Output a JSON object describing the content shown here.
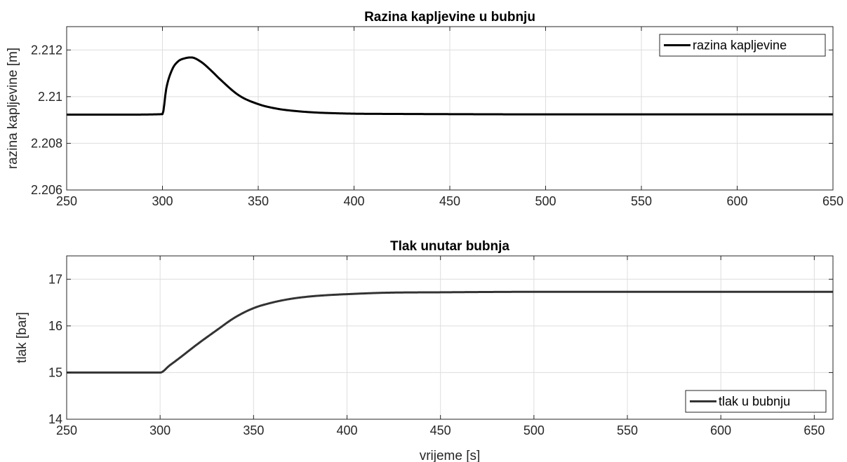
{
  "chart_data": [
    {
      "type": "line",
      "title": "Razina kapljevine u bubnju",
      "xlabel": "",
      "ylabel": "razina kapljevine [m]",
      "xlim": [
        250,
        650
      ],
      "ylim": [
        2.206,
        2.213
      ],
      "xticks": [
        250,
        300,
        350,
        400,
        450,
        500,
        550,
        600,
        650
      ],
      "yticks": [
        2.206,
        2.208,
        2.21,
        2.212
      ],
      "ytick_labels": [
        "2.206",
        "2.208",
        "2.21",
        "2.212"
      ],
      "grid": true,
      "legend_position": "top-right",
      "series": [
        {
          "name": "razina kapljevine",
          "color": "#000000",
          "x": [
            250,
            280,
            300,
            302,
            305,
            308,
            312,
            315,
            320,
            325,
            330,
            340,
            350,
            360,
            370,
            380,
            390,
            400,
            420,
            450,
            500,
            550,
            600,
            650
          ],
          "y": [
            2.20923,
            2.20923,
            2.20925,
            2.21035,
            2.21115,
            2.2115,
            2.21165,
            2.21168,
            2.2115,
            2.21115,
            2.21075,
            2.21005,
            2.20968,
            2.20948,
            2.20938,
            2.20932,
            2.20929,
            2.20927,
            2.20926,
            2.20925,
            2.20924,
            2.20924,
            2.20924,
            2.20924
          ]
        }
      ]
    },
    {
      "type": "line",
      "title": "Tlak unutar bubnja",
      "xlabel": "vrijeme [s]",
      "ylabel": "tlak [bar]",
      "xlim": [
        250,
        660
      ],
      "ylim": [
        14,
        17.5
      ],
      "xticks": [
        250,
        300,
        350,
        400,
        450,
        500,
        550,
        600,
        650
      ],
      "yticks": [
        14,
        15,
        16,
        17
      ],
      "ytick_labels": [
        "14",
        "15",
        "16",
        "17"
      ],
      "grid": true,
      "legend_position": "bottom-right",
      "series": [
        {
          "name": "tlak u bubnju",
          "color": "#333333",
          "x": [
            250,
            300,
            305,
            310,
            320,
            330,
            340,
            350,
            360,
            370,
            380,
            390,
            400,
            420,
            450,
            500,
            550,
            600,
            660
          ],
          "y": [
            15.0,
            15.0,
            15.15,
            15.3,
            15.61,
            15.9,
            16.18,
            16.38,
            16.5,
            16.58,
            16.63,
            16.66,
            16.68,
            16.71,
            16.72,
            16.73,
            16.73,
            16.73,
            16.73
          ]
        }
      ]
    }
  ]
}
